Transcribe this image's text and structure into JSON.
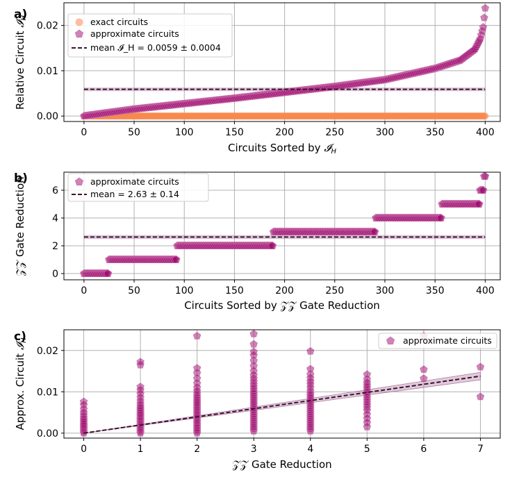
{
  "colors": {
    "exact": "#f7894e",
    "approx": "#9c0a6e",
    "approx_edge": "#c86aa8",
    "mean": "#3d1030",
    "band": "#b07ca3"
  },
  "chart_data": [
    {
      "type": "scatter",
      "panel_label": "a)",
      "xlabel": "Circuits Sorted by 𝓘_H",
      "ylabel": "Relative Circuit 𝓘_H",
      "xlim": [
        -20,
        415
      ],
      "ylim": [
        -0.0012,
        0.025
      ],
      "xticks": [
        0,
        50,
        100,
        150,
        200,
        250,
        300,
        350,
        400
      ],
      "yticks": [
        0.0,
        0.01,
        0.02
      ],
      "ytick_labels": [
        "0.00",
        "0.01",
        "0.02"
      ],
      "legend": [
        "exact circuits",
        "approximate circuits",
        "mean 𝓘_H = 0.0059 ± 0.0004"
      ],
      "series": [
        {
          "name": "exact circuits",
          "n": 400,
          "value": 0.0
        },
        {
          "name": "approximate circuits",
          "n": 400,
          "curve_x": [
            0,
            20,
            50,
            100,
            150,
            200,
            250,
            300,
            350,
            375,
            390,
            395,
            398,
            400
          ],
          "curve_y": [
            0.0,
            0.0006,
            0.0015,
            0.0027,
            0.0039,
            0.0052,
            0.0065,
            0.008,
            0.0105,
            0.0123,
            0.0148,
            0.017,
            0.0196,
            0.0238
          ]
        }
      ],
      "mean": 0.0059,
      "mean_err": 0.0004
    },
    {
      "type": "scatter",
      "panel_label": "b)",
      "xlabel": "Circuits Sorted by 𝒵𝒵 Gate Reduction",
      "ylabel": "𝒵𝒵 Gate Reduction",
      "xlim": [
        -20,
        415
      ],
      "ylim": [
        -0.45,
        7.3
      ],
      "xticks": [
        0,
        50,
        100,
        150,
        200,
        250,
        300,
        350,
        400
      ],
      "yticks": [
        0,
        2,
        4,
        6
      ],
      "legend": [
        "approximate circuits",
        "mean = 2.63 ± 0.14"
      ],
      "series": [
        {
          "name": "approximate circuits",
          "steps": [
            {
              "from": 0,
              "to": 24,
              "value": 0
            },
            {
              "from": 25,
              "to": 92,
              "value": 1
            },
            {
              "from": 93,
              "to": 188,
              "value": 2
            },
            {
              "from": 189,
              "to": 290,
              "value": 3
            },
            {
              "from": 291,
              "to": 356,
              "value": 4
            },
            {
              "from": 357,
              "to": 394,
              "value": 5
            },
            {
              "from": 395,
              "to": 398,
              "value": 6
            },
            {
              "from": 399,
              "to": 400,
              "value": 7
            }
          ]
        }
      ],
      "mean": 2.63,
      "mean_err": 0.14
    },
    {
      "type": "scatter",
      "panel_label": "c)",
      "xlabel": "𝒵𝒵 Gate Reduction",
      "ylabel": "Approx. Circuit 𝓘_H",
      "xlim": [
        -0.35,
        7.35
      ],
      "ylim": [
        -0.0012,
        0.025
      ],
      "xticks": [
        0,
        1,
        2,
        3,
        4,
        5,
        6,
        7
      ],
      "yticks": [
        0.0,
        0.01,
        0.02
      ],
      "ytick_labels": [
        "0.00",
        "0.01",
        "0.02"
      ],
      "legend": [
        "approximate circuits"
      ],
      "series": [
        {
          "name": "approximate circuits",
          "groups": [
            {
              "x": 0,
              "values": [
                0.0,
                0.0003,
                0.0006,
                0.0009,
                0.0012,
                0.0015,
                0.0018,
                0.0021,
                0.0025,
                0.0029,
                0.0033,
                0.0038,
                0.0044,
                0.005,
                0.0058,
                0.0068,
                0.0076
              ]
            },
            {
              "x": 1,
              "values": [
                0.0,
                0.0003,
                0.0006,
                0.0009,
                0.0012,
                0.0015,
                0.0018,
                0.0021,
                0.0024,
                0.0027,
                0.003,
                0.0033,
                0.0036,
                0.0039,
                0.0042,
                0.0045,
                0.0048,
                0.0052,
                0.0056,
                0.006,
                0.0065,
                0.0071,
                0.0078,
                0.0086,
                0.0095,
                0.0104,
                0.0112,
                0.0165,
                0.0172
              ]
            },
            {
              "x": 2,
              "values": [
                0.0,
                0.0004,
                0.0008,
                0.0012,
                0.0016,
                0.002,
                0.0024,
                0.0028,
                0.0032,
                0.0036,
                0.004,
                0.0044,
                0.0048,
                0.0052,
                0.0056,
                0.006,
                0.0064,
                0.0068,
                0.0072,
                0.0076,
                0.008,
                0.0085,
                0.009,
                0.0096,
                0.0102,
                0.011,
                0.012,
                0.0132,
                0.0145,
                0.0157,
                0.0235
              ]
            },
            {
              "x": 3,
              "values": [
                0.0005,
                0.001,
                0.0015,
                0.002,
                0.0025,
                0.003,
                0.0035,
                0.004,
                0.0045,
                0.005,
                0.0055,
                0.006,
                0.0065,
                0.007,
                0.0075,
                0.008,
                0.0085,
                0.009,
                0.0095,
                0.01,
                0.0106,
                0.0112,
                0.0118,
                0.0125,
                0.0132,
                0.014,
                0.015,
                0.0162,
                0.0175,
                0.0188,
                0.0197,
                0.0215,
                0.024
              ]
            },
            {
              "x": 4,
              "values": [
                0.0005,
                0.001,
                0.0015,
                0.002,
                0.0025,
                0.003,
                0.0035,
                0.004,
                0.0045,
                0.005,
                0.0055,
                0.006,
                0.0065,
                0.007,
                0.0075,
                0.008,
                0.0085,
                0.009,
                0.0095,
                0.0102,
                0.011,
                0.0118,
                0.0125,
                0.0133,
                0.0142,
                0.0155,
                0.0198
              ]
            },
            {
              "x": 5,
              "values": [
                0.0015,
                0.0025,
                0.0035,
                0.0045,
                0.0055,
                0.0062,
                0.0068,
                0.0074,
                0.008,
                0.0086,
                0.0092,
                0.0098,
                0.0104,
                0.011,
                0.0116,
                0.0122,
                0.013,
                0.0142
              ]
            },
            {
              "x": 6,
              "values": [
                0.0132,
                0.0154,
                0.0235
              ]
            },
            {
              "x": 7,
              "values": [
                0.0088,
                0.016
              ]
            }
          ]
        }
      ],
      "fit": {
        "slope": 0.00197,
        "intercept": 0.0,
        "band_halfwidth_at_7": 0.0009
      }
    }
  ]
}
